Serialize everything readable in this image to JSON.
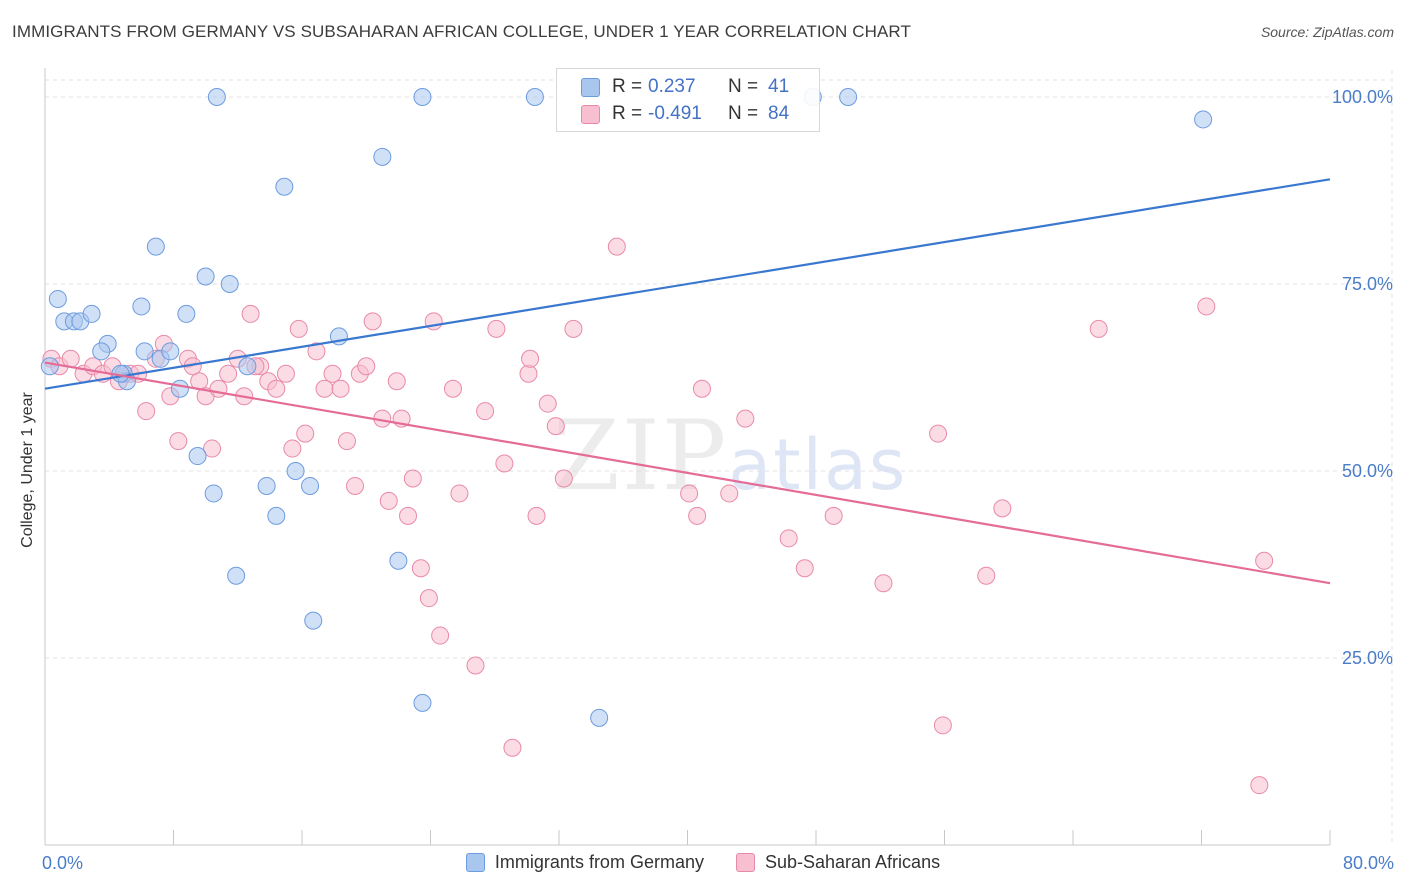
{
  "title": "IMMIGRANTS FROM GERMANY VS SUBSAHARAN AFRICAN COLLEGE, UNDER 1 YEAR CORRELATION CHART",
  "source": "Source: ZipAtlas.com",
  "watermark": {
    "zip": "ZIP",
    "atlas": "atlas"
  },
  "legend": {
    "row1": {
      "r_label": "R =",
      "r_value": "0.237",
      "n_label": "N =",
      "n_value": "41"
    },
    "row2": {
      "r_label": "R =",
      "r_value": "-0.491",
      "n_label": "N =",
      "n_value": "84"
    }
  },
  "x_axis_left": "0.0%",
  "x_axis_right": "80.0%",
  "colors": {
    "blue_fill": "#a9c6ee",
    "blue_stroke": "#6d9ce0",
    "blue_line": "#3a78d0",
    "pink_fill": "#f7bfd0",
    "pink_stroke": "#e98aa9",
    "pink_line": "#e46c97",
    "grid": "#e0e0e0",
    "tick_label": "#4a7cc9"
  },
  "chart_data": {
    "type": "scatter",
    "title": "IMMIGRANTS FROM GERMANY VS SUBSAHARAN AFRICAN COLLEGE, UNDER 1 YEAR CORRELATION CHART",
    "xlabel": "",
    "ylabel": "College, Under 1 year",
    "xlim": [
      0,
      80
    ],
    "ylim": [
      0,
      100
    ],
    "ytick_labels": [
      "100.0%",
      "75.0%",
      "50.0%",
      "25.0%"
    ],
    "ytick_values": [
      100,
      75,
      50,
      25
    ],
    "grid": true,
    "series": [
      {
        "name": "Immigrants from Germany",
        "r": 0.237,
        "n": 41,
        "trend": {
          "x": [
            0,
            80
          ],
          "y": [
            61,
            89
          ]
        },
        "points": [
          [
            0.3,
            64
          ],
          [
            0.8,
            73
          ],
          [
            1.2,
            70
          ],
          [
            1.8,
            70
          ],
          [
            2.2,
            70
          ],
          [
            2.9,
            71
          ],
          [
            3.9,
            67
          ],
          [
            3.5,
            66
          ],
          [
            4.9,
            63
          ],
          [
            5.1,
            62
          ],
          [
            6.0,
            72
          ],
          [
            6.2,
            66
          ],
          [
            7.2,
            65
          ],
          [
            7.8,
            66
          ],
          [
            8.4,
            61
          ],
          [
            8.8,
            71
          ],
          [
            9.5,
            52
          ],
          [
            6.9,
            80
          ],
          [
            10.0,
            76
          ],
          [
            10.5,
            47
          ],
          [
            11.5,
            75
          ],
          [
            11.9,
            36
          ],
          [
            12.6,
            64
          ],
          [
            13.8,
            48
          ],
          [
            14.4,
            44
          ],
          [
            14.9,
            88
          ],
          [
            15.6,
            50
          ],
          [
            16.5,
            48
          ],
          [
            16.7,
            30
          ],
          [
            18.3,
            68
          ],
          [
            21.0,
            92
          ],
          [
            22.0,
            38
          ],
          [
            23.5,
            19
          ],
          [
            34.5,
            17
          ],
          [
            10.7,
            100
          ],
          [
            23.5,
            100
          ],
          [
            30.5,
            100
          ],
          [
            47.8,
            100
          ],
          [
            50.0,
            100
          ],
          [
            72.1,
            97
          ],
          [
            4.7,
            63
          ]
        ]
      },
      {
        "name": "Sub-Saharan Africans",
        "r": -0.491,
        "n": 84,
        "trend": {
          "x": [
            0,
            80
          ],
          "y": [
            64.5,
            35
          ]
        },
        "points": [
          [
            0.4,
            65
          ],
          [
            0.9,
            64
          ],
          [
            1.6,
            65
          ],
          [
            2.4,
            63
          ],
          [
            3.0,
            64
          ],
          [
            3.6,
            63
          ],
          [
            4.2,
            64
          ],
          [
            4.6,
            62
          ],
          [
            5.3,
            63
          ],
          [
            5.8,
            63
          ],
          [
            6.3,
            58
          ],
          [
            6.9,
            65
          ],
          [
            7.4,
            67
          ],
          [
            7.8,
            60
          ],
          [
            8.3,
            54
          ],
          [
            8.9,
            65
          ],
          [
            9.6,
            62
          ],
          [
            10.0,
            60
          ],
          [
            10.4,
            53
          ],
          [
            10.8,
            61
          ],
          [
            11.4,
            63
          ],
          [
            12.0,
            65
          ],
          [
            12.4,
            60
          ],
          [
            12.8,
            71
          ],
          [
            13.4,
            64
          ],
          [
            13.9,
            62
          ],
          [
            14.4,
            61
          ],
          [
            15.0,
            63
          ],
          [
            15.4,
            53
          ],
          [
            15.8,
            69
          ],
          [
            16.2,
            55
          ],
          [
            16.9,
            66
          ],
          [
            17.4,
            61
          ],
          [
            17.9,
            63
          ],
          [
            18.4,
            61
          ],
          [
            18.8,
            54
          ],
          [
            19.3,
            48
          ],
          [
            19.6,
            63
          ],
          [
            20.0,
            64
          ],
          [
            20.4,
            70
          ],
          [
            21.0,
            57
          ],
          [
            21.4,
            46
          ],
          [
            21.9,
            62
          ],
          [
            22.2,
            57
          ],
          [
            22.6,
            44
          ],
          [
            22.9,
            49
          ],
          [
            23.4,
            37
          ],
          [
            23.9,
            33
          ],
          [
            24.2,
            70
          ],
          [
            24.6,
            28
          ],
          [
            25.4,
            61
          ],
          [
            25.8,
            47
          ],
          [
            26.8,
            24
          ],
          [
            27.4,
            58
          ],
          [
            28.1,
            69
          ],
          [
            28.6,
            51
          ],
          [
            29.1,
            13
          ],
          [
            30.1,
            63
          ],
          [
            30.6,
            44
          ],
          [
            31.3,
            59
          ],
          [
            31.8,
            56
          ],
          [
            32.3,
            49
          ],
          [
            32.9,
            69
          ],
          [
            35.6,
            80
          ],
          [
            40.1,
            47
          ],
          [
            40.6,
            44
          ],
          [
            40.9,
            61
          ],
          [
            42.6,
            47
          ],
          [
            43.6,
            57
          ],
          [
            46.3,
            41
          ],
          [
            47.3,
            37
          ],
          [
            49.1,
            44
          ],
          [
            52.2,
            35
          ],
          [
            55.6,
            55
          ],
          [
            55.9,
            16
          ],
          [
            58.6,
            36
          ],
          [
            59.6,
            45
          ],
          [
            65.6,
            69
          ],
          [
            72.3,
            72
          ],
          [
            75.6,
            8
          ],
          [
            75.9,
            38
          ],
          [
            9.2,
            64
          ],
          [
            13.1,
            64
          ],
          [
            30.2,
            65
          ]
        ]
      }
    ]
  }
}
